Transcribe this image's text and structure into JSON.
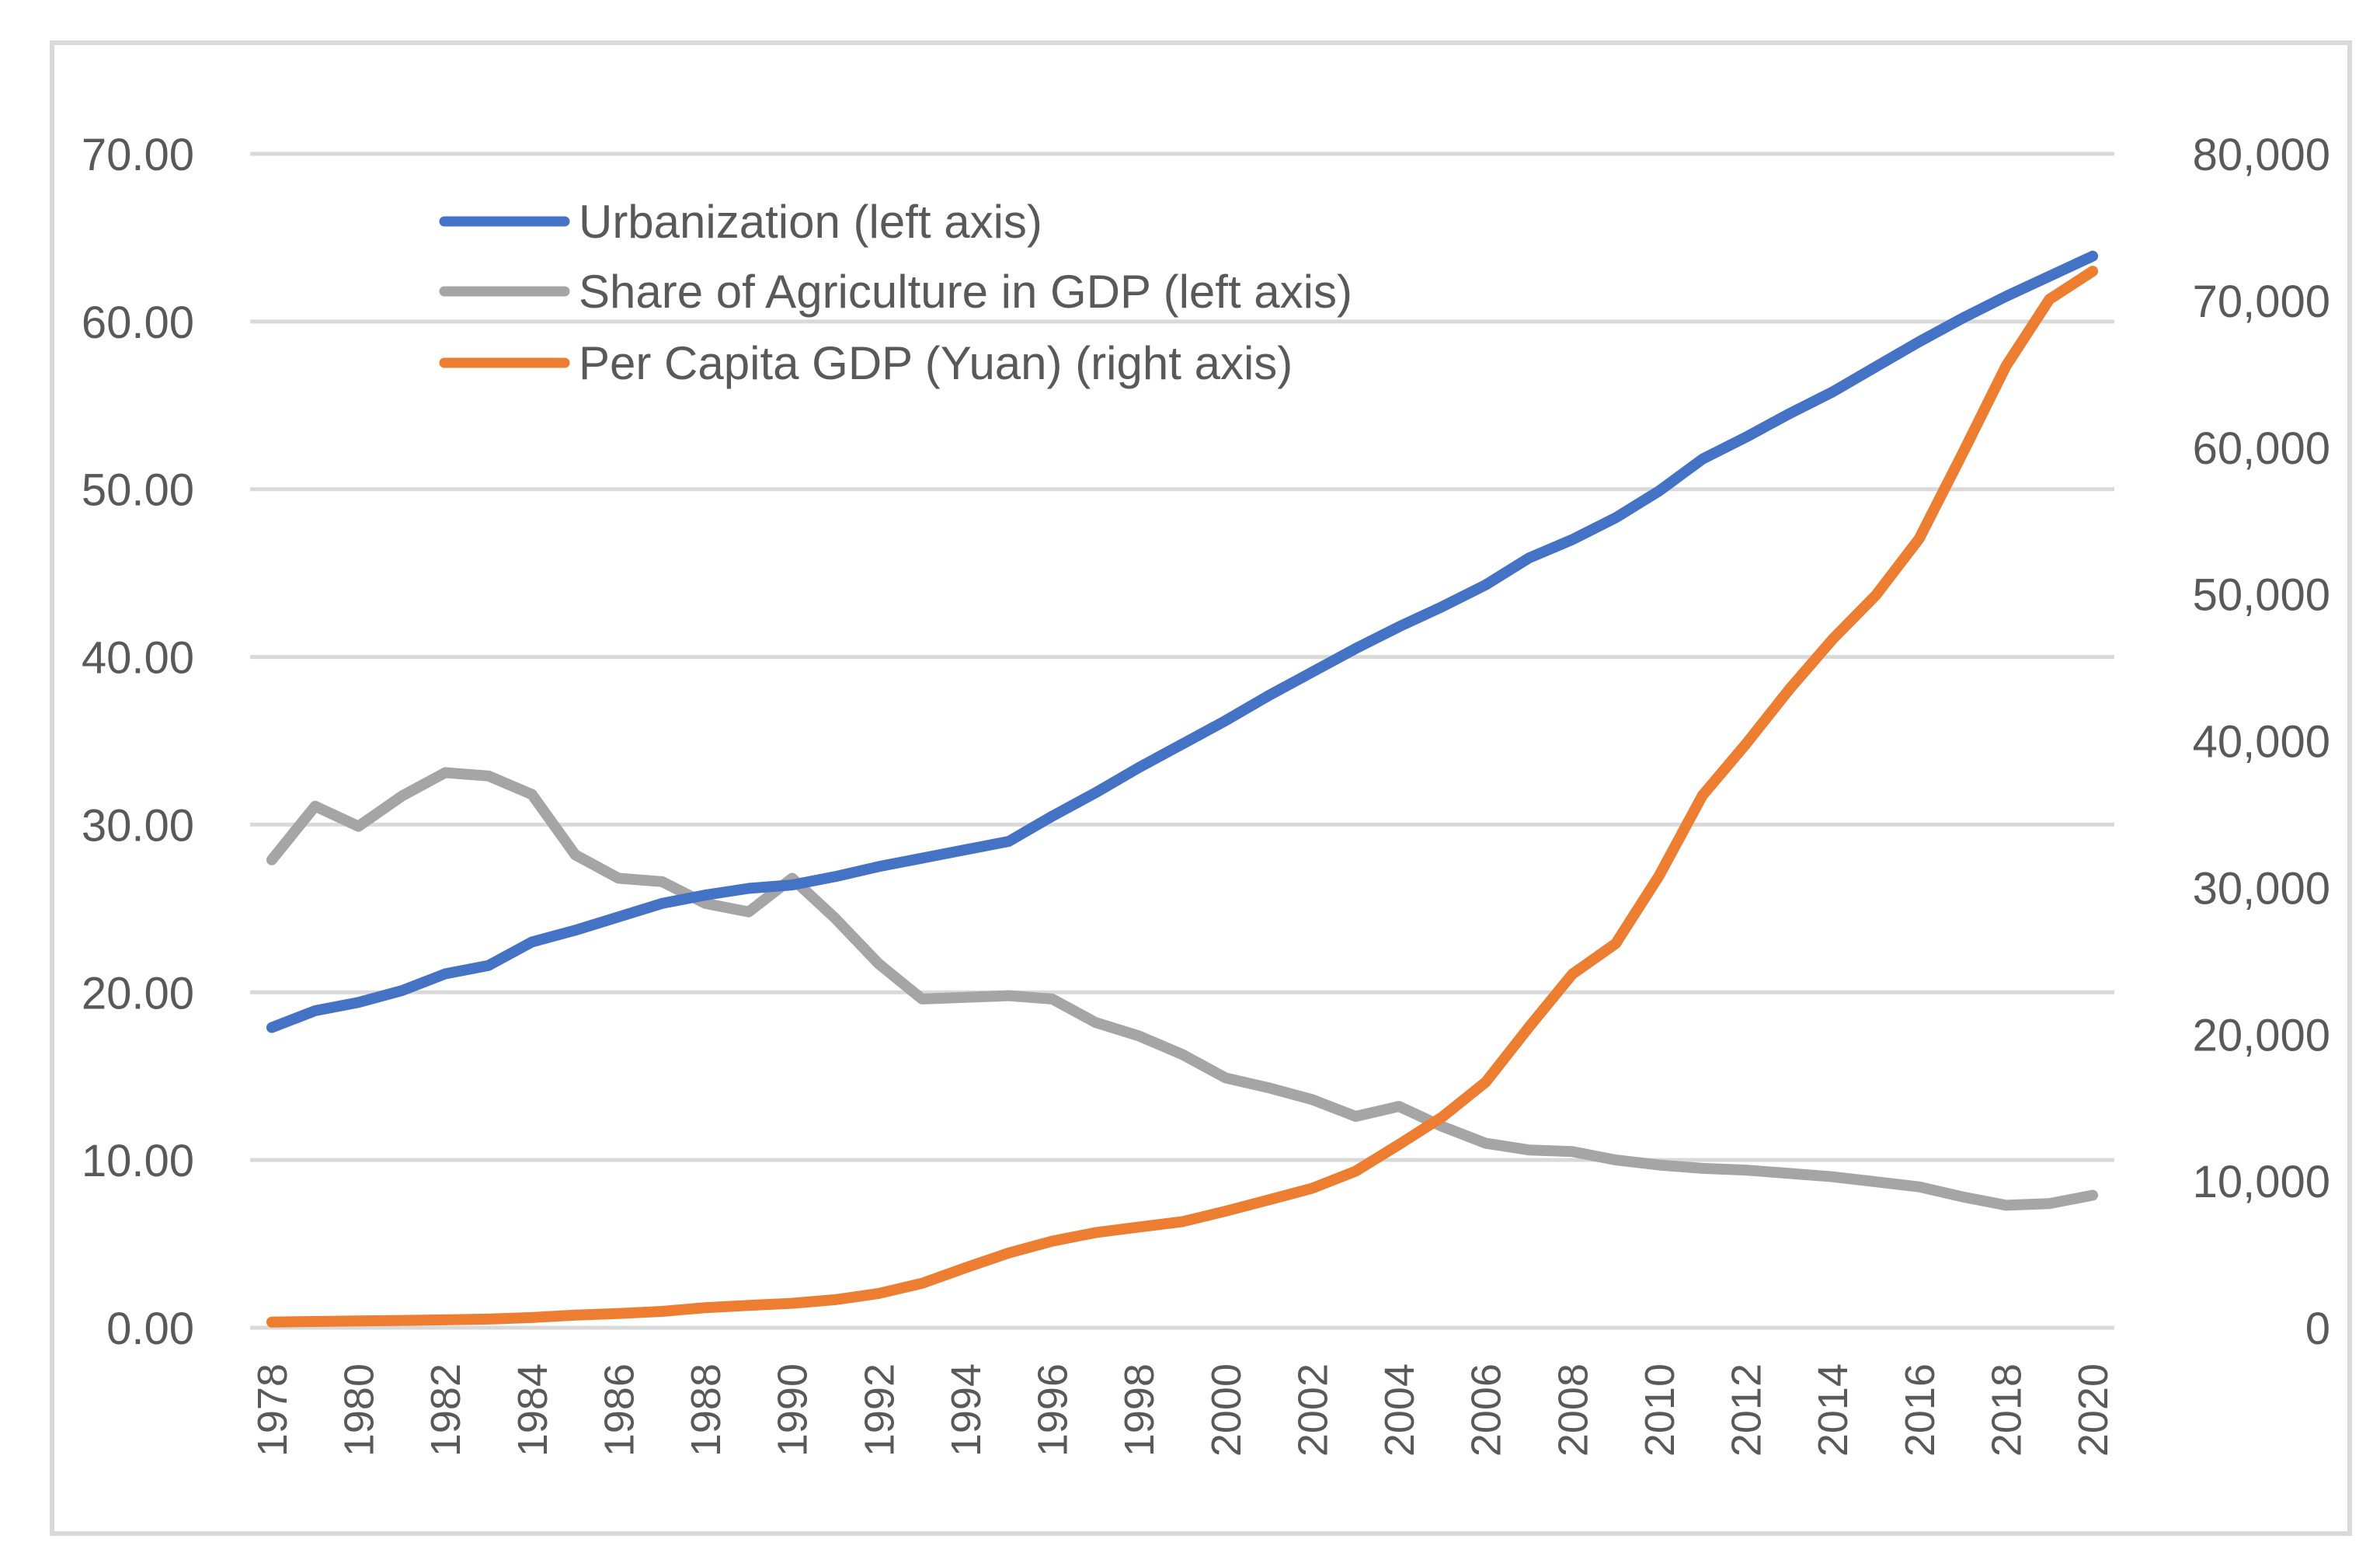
{
  "chart_data": {
    "type": "line",
    "title": "",
    "xlabel": "",
    "ylabel_left": "",
    "ylabel_right": "",
    "categories": [
      1978,
      1979,
      1980,
      1981,
      1982,
      1983,
      1984,
      1985,
      1986,
      1987,
      1988,
      1989,
      1990,
      1991,
      1992,
      1993,
      1994,
      1995,
      1996,
      1997,
      1998,
      1999,
      2000,
      2001,
      2002,
      2003,
      2004,
      2005,
      2006,
      2007,
      2008,
      2009,
      2010,
      2011,
      2012,
      2013,
      2014,
      2015,
      2016,
      2017,
      2018,
      2019,
      2020
    ],
    "x_tick_labels": [
      "1978",
      "1980",
      "1982",
      "1984",
      "1986",
      "1988",
      "1990",
      "1992",
      "1994",
      "1996",
      "1998",
      "2000",
      "2002",
      "2004",
      "2006",
      "2008",
      "2010",
      "2012",
      "2014",
      "2016",
      "2018",
      "2020"
    ],
    "y_left": {
      "range": [
        0,
        70
      ],
      "ticks": [
        0,
        10,
        20,
        30,
        40,
        50,
        60,
        70
      ],
      "tick_labels": [
        "0.00",
        "10.00",
        "20.00",
        "30.00",
        "40.00",
        "50.00",
        "60.00",
        "70.00"
      ]
    },
    "y_right": {
      "range": [
        0,
        80000
      ],
      "ticks": [
        0,
        10000,
        20000,
        30000,
        40000,
        50000,
        60000,
        70000,
        80000
      ],
      "tick_labels": [
        "0",
        "10,000",
        "20,000",
        "30,000",
        "40,000",
        "50,000",
        "60,000",
        "70,000",
        "80,000"
      ]
    },
    "grid": true,
    "legend_position": "top-left",
    "series": [
      {
        "name": "Urbanization (left axis)",
        "axis": "left",
        "color": "#4472c4",
        "values": [
          17.9,
          18.9,
          19.4,
          20.1,
          21.1,
          21.6,
          23.0,
          23.7,
          24.5,
          25.3,
          25.8,
          26.2,
          26.4,
          26.9,
          27.5,
          28.0,
          28.5,
          29.0,
          30.5,
          31.9,
          33.4,
          34.8,
          36.2,
          37.7,
          39.1,
          40.5,
          41.8,
          43.0,
          44.3,
          45.9,
          47.0,
          48.3,
          49.9,
          51.8,
          53.1,
          54.5,
          55.8,
          57.3,
          58.8,
          60.2,
          61.5,
          62.7,
          63.9
        ]
      },
      {
        "name": "Share of Agriculture in GDP (left axis)",
        "axis": "left",
        "color": "#a5a5a5",
        "values": [
          27.9,
          31.1,
          29.9,
          31.7,
          33.1,
          32.9,
          31.8,
          28.2,
          26.8,
          26.6,
          25.3,
          24.8,
          26.8,
          24.4,
          21.7,
          19.6,
          19.7,
          19.8,
          19.6,
          18.2,
          17.4,
          16.3,
          14.9,
          14.3,
          13.6,
          12.6,
          13.2,
          12.0,
          11.0,
          10.6,
          10.5,
          10.0,
          9.7,
          9.5,
          9.4,
          9.2,
          9.0,
          8.7,
          8.4,
          7.8,
          7.3,
          7.4,
          7.9
        ]
      },
      {
        "name": "Per Capita GDP (Yuan) (right axis)",
        "axis": "right",
        "color": "#ed7d31",
        "values": [
          385,
          423,
          468,
          497,
          533,
          588,
          695,
          858,
          963,
          1112,
          1366,
          1519,
          1663,
          1912,
          2334,
          3027,
          4081,
          5091,
          5898,
          6481,
          6860,
          7229,
          7942,
          8717,
          9506,
          10666,
          12487,
          14368,
          16738,
          20494,
          24100,
          26180,
          30808,
          36277,
          39771,
          43497,
          46912,
          49922,
          53783,
          59592,
          65534,
          70078,
          72000
        ]
      }
    ]
  }
}
